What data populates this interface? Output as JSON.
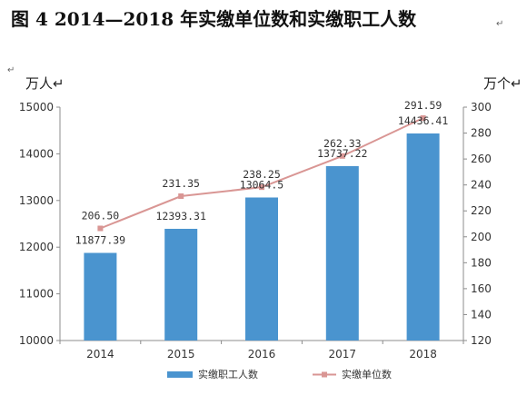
{
  "chart_data": {
    "type": "bar",
    "title": "图 4   2014—2018 年实缴单位数和实缴职工人数",
    "title_mark": "↵",
    "top_left_mark": "↵",
    "y_left_label": "万人↵",
    "y_right_label": "万个↵",
    "categories": [
      "2014",
      "2015",
      "2016",
      "2017",
      "2018"
    ],
    "y_left_ticks": [
      "15000",
      "14000",
      "13000",
      "12000",
      "11000",
      "10000"
    ],
    "y_right_ticks": [
      "300",
      "280",
      "260",
      "240",
      "220",
      "200",
      "180",
      "160",
      "140",
      "120"
    ],
    "ylim_left": [
      10000,
      15000
    ],
    "ylim_right": [
      120,
      300
    ],
    "series": [
      {
        "name": "实缴职工人数",
        "type": "bar",
        "axis": "left",
        "color": "#4a94cf",
        "values": [
          11877.39,
          12393.31,
          13064.5,
          13737.22,
          14436.41
        ],
        "labels": [
          "11877.39",
          "12393.31",
          "13064.5",
          "13737.22",
          "14436.41"
        ]
      },
      {
        "name": "实缴单位数",
        "type": "line",
        "axis": "right",
        "color": "#d99694",
        "values": [
          206.5,
          231.35,
          238.25,
          262.33,
          291.59
        ],
        "labels": [
          "206.50",
          "231.35",
          "238.25",
          "262.33",
          "291.59"
        ]
      }
    ],
    "legend_position": "bottom",
    "grid": false
  }
}
